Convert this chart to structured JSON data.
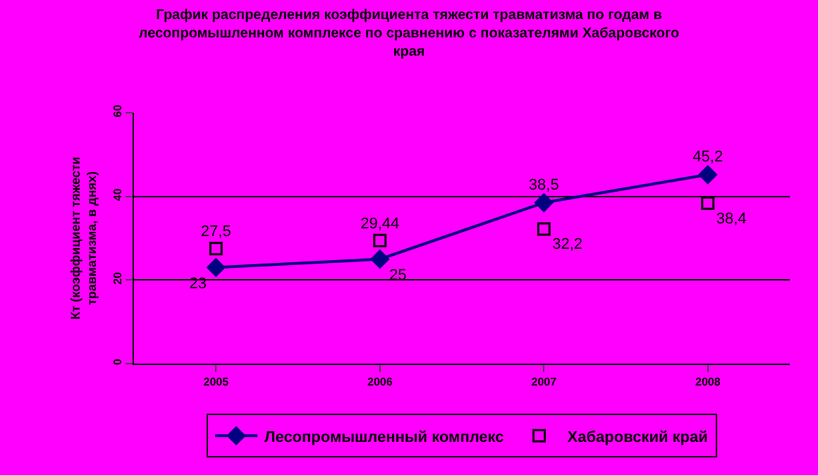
{
  "chart_data": {
    "type": "line",
    "title": "График распределения коэффициента тяжести травматизма по годам в\nлесопромышленном комплексе по сравнению с показателями Хабаровского\nкрая",
    "ylabel": "Кт (коэффициент тяжести\nтравматизма, в днях)",
    "categories": [
      "2005",
      "2006",
      "2007",
      "2008"
    ],
    "series": [
      {
        "name": "Лесопромышленный комплекс",
        "color": "#000080",
        "marker": "diamond",
        "values": [
          23,
          25,
          38.5,
          45.2
        ],
        "value_labels": [
          "23",
          "25",
          "38,5",
          "45,2"
        ]
      },
      {
        "name": "Хабаровский край",
        "type": "scatter",
        "color": "#000000",
        "marker": "square",
        "values": [
          27.5,
          29.44,
          32.2,
          38.4
        ],
        "value_labels": [
          "27,5",
          "29,44",
          "32,2",
          "38,4"
        ]
      }
    ],
    "ylim": [
      0,
      60
    ],
    "yticks": [
      0,
      20,
      40,
      60
    ],
    "grid": "y",
    "legend": "bottom"
  }
}
